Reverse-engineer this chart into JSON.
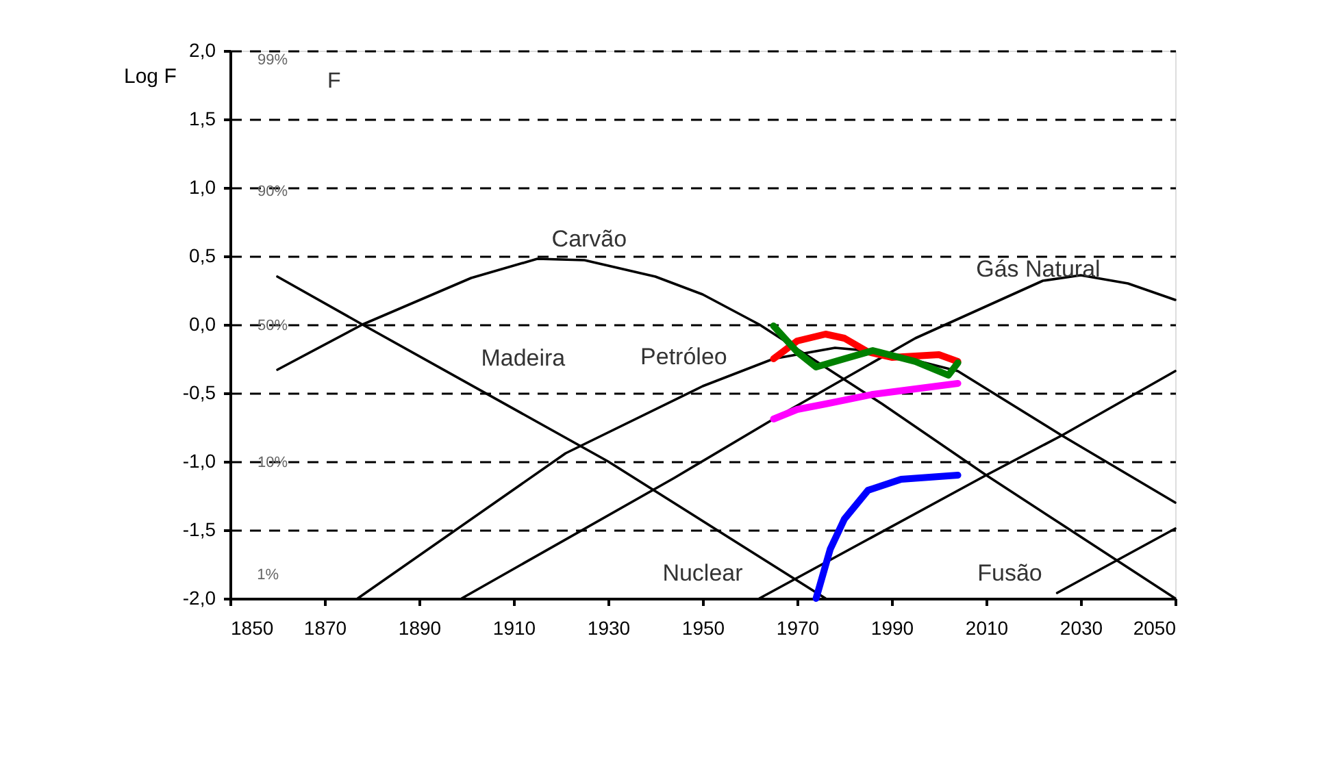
{
  "chart_data": {
    "type": "line",
    "ylabel": "Log F",
    "xlim": [
      1850,
      2050
    ],
    "xticks": [
      1850,
      1870,
      1890,
      1910,
      1930,
      1950,
      1970,
      1990,
      2010,
      2030,
      2050
    ],
    "ylim": [
      -2.0,
      2.0
    ],
    "yticks": [
      {
        "value": 2.0,
        "label": "2,0"
      },
      {
        "value": 1.5,
        "label": "1,5"
      },
      {
        "value": 1.0,
        "label": "1,0"
      },
      {
        "value": 0.5,
        "label": "0,5"
      },
      {
        "value": 0.0,
        "label": "0,0"
      },
      {
        "value": -0.5,
        "label": "-0,5"
      },
      {
        "value": -1.0,
        "label": "-1,0"
      },
      {
        "value": -1.5,
        "label": "-1,5"
      },
      {
        "value": -2.0,
        "label": "-2,0"
      }
    ],
    "grid": "y",
    "marker": "none",
    "series": [
      {
        "name": "Madeira",
        "color": "#000000",
        "line_style": "solid",
        "x": [
          1860,
          1878,
          1930,
          1976
        ],
        "values": [
          0.35,
          0.0,
          -1.0,
          -2.0
        ]
      },
      {
        "name": "Carvão",
        "color": "#000000",
        "line_style": "solid",
        "x": [
          1860,
          1878,
          1901,
          1915,
          1925,
          1940,
          1950,
          1962,
          1988,
          2010,
          2050
        ],
        "values": [
          -0.33,
          0.0,
          0.34,
          0.48,
          0.47,
          0.35,
          0.22,
          0.0,
          -0.58,
          -1.1,
          -2.0
        ]
      },
      {
        "name": "Petróleo",
        "color": "#000000",
        "line_style": "solid",
        "x": [
          1877,
          1921,
          1950,
          1965,
          1978,
          1988,
          2004,
          2026,
          2050
        ],
        "values": [
          -2.0,
          -0.94,
          -0.45,
          -0.25,
          -0.17,
          -0.2,
          -0.34,
          -0.81,
          -1.3
        ]
      },
      {
        "name": "Gás Natural",
        "color": "#000000",
        "line_style": "solid",
        "x": [
          1899,
          1944,
          1965,
          1995,
          2022,
          2030,
          2040,
          2050
        ],
        "values": [
          -2.0,
          -1.12,
          -0.69,
          -0.1,
          0.32,
          0.36,
          0.3,
          0.18
        ]
      },
      {
        "name": "Nuclear",
        "color": "#000000",
        "line_style": "solid",
        "x": [
          1962,
          2010,
          2026,
          2050
        ],
        "values": [
          -2.0,
          -1.1,
          -0.81,
          -0.34
        ]
      },
      {
        "name": "Fusão",
        "color": "#000000",
        "line_style": "solid",
        "x": [
          2025,
          2050
        ],
        "values": [
          -1.96,
          -1.49
        ]
      },
      {
        "color": "#ff0000",
        "line_style": "solid",
        "x": [
          1965,
          1970,
          1976,
          1980,
          1985,
          1990,
          2000,
          2004
        ],
        "values": [
          -0.25,
          -0.12,
          -0.07,
          -0.1,
          -0.2,
          -0.24,
          -0.22,
          -0.27
        ]
      },
      {
        "color": "#008000",
        "line_style": "solid",
        "x": [
          1965,
          1970,
          1974,
          1980,
          1986,
          1995,
          2002,
          2004
        ],
        "values": [
          -0.01,
          -0.2,
          -0.31,
          -0.25,
          -0.19,
          -0.27,
          -0.37,
          -0.28
        ]
      },
      {
        "color": "#ff00ff",
        "line_style": "solid",
        "x": [
          1965,
          1970,
          1976,
          1986,
          1995,
          2004
        ],
        "values": [
          -0.69,
          -0.62,
          -0.58,
          -0.51,
          -0.47,
          -0.43
        ]
      },
      {
        "color": "#0000ff",
        "line_style": "solid",
        "x": [
          1974,
          1977,
          1980,
          1985,
          1992,
          2004
        ],
        "values": [
          -2.0,
          -1.64,
          -1.42,
          -1.21,
          -1.13,
          -1.1
        ]
      }
    ],
    "annotations": [
      "F",
      "99%",
      "90%",
      "50%",
      "10%",
      "1%"
    ]
  }
}
